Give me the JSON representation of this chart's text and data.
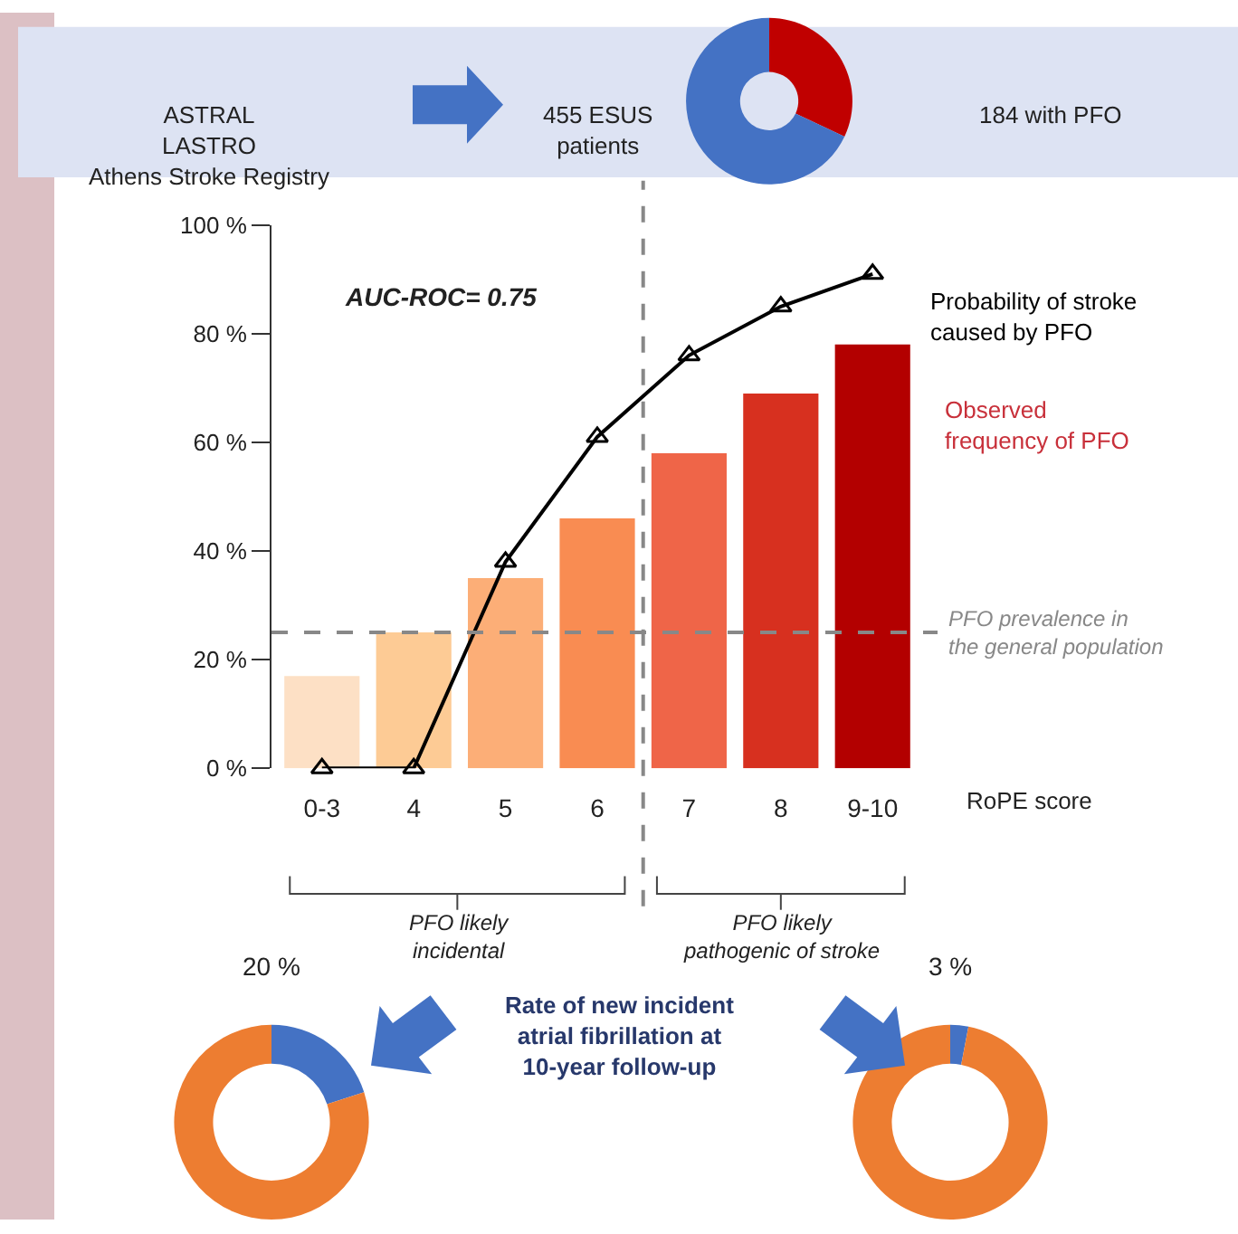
{
  "chart_data": [
    {
      "type": "donut",
      "categories": [
        null,
        null
      ],
      "values": [
        32,
        68
      ],
      "colors": [
        "#c00000",
        "#4472c4"
      ],
      "annotations": [
        "ASTRAL\nLASTRO\nAthens Stroke Registry",
        "455 ESUS\npatients",
        "184 with PFO"
      ]
    },
    {
      "type": "bar",
      "categories": [
        "0-3",
        "4",
        "5",
        "6",
        "7",
        "8",
        "9-10"
      ],
      "xlabel": "RoPE score",
      "series": [
        {
          "type": "bar",
          "name": "Observed\nfrequency of PFO",
          "color": "#c8303a",
          "colors": [
            "#fde0c5",
            "#fdcb95",
            "#fcae77",
            "#f98c52",
            "#ef6548",
            "#d7301f",
            "#b30000"
          ],
          "values": [
            17,
            25,
            35,
            46,
            58,
            69,
            78
          ]
        },
        {
          "type": "line",
          "name": "Probability of stroke\ncaused by PFO",
          "color": "#000000",
          "marker": "triangle",
          "values": [
            0,
            0,
            38,
            61,
            76,
            85,
            91
          ]
        }
      ],
      "ylim": [
        0,
        100
      ],
      "yticks": [
        {
          "value": 0,
          "label": "0 %"
        },
        {
          "value": 20,
          "label": "20 %"
        },
        {
          "value": 40,
          "label": "40 %"
        },
        {
          "value": 60,
          "label": "60 %"
        },
        {
          "value": 80,
          "label": "80 %"
        },
        {
          "value": 100,
          "label": "100 %"
        }
      ],
      "ref_lines": [
        {
          "axis": "y",
          "value": 25,
          "label": "PFO prevalence in\nthe general population",
          "color": "#888888",
          "line_style": "dashed"
        }
      ],
      "annotations": [
        "AUC-ROC= 0.75",
        "PFO likely\nincidental",
        "PFO likely\npathogenic of stroke"
      ]
    },
    {
      "type": "donut",
      "categories": [
        null,
        null
      ],
      "values": [
        20,
        80
      ],
      "colors": [
        "#4472c4",
        "#ed7d31"
      ],
      "value_labels": [
        "20 %",
        null
      ],
      "annotations": [
        "Rate of new incident\natrial fibrillation at\n10-year follow-up"
      ]
    },
    {
      "type": "donut",
      "categories": [
        null,
        null
      ],
      "values": [
        3,
        97
      ],
      "colors": [
        "#4472c4",
        "#ed7d31"
      ],
      "value_labels": [
        "3 %",
        null
      ]
    }
  ]
}
